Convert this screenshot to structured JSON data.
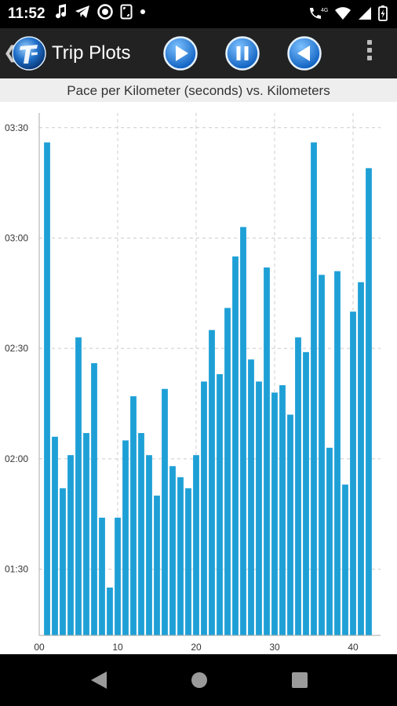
{
  "status_bar": {
    "time": "11:52",
    "left_icons": [
      "music-note-icon",
      "telegram-icon",
      "record-icon",
      "screenshot-icon",
      "dot-icon"
    ],
    "right_icons": [
      "call-4g-icon",
      "wifi-icon",
      "signal-icon",
      "battery-icon"
    ],
    "network_label": "4G"
  },
  "app_bar": {
    "title": "Trip Plots",
    "buttons": [
      "play-button",
      "pause-button",
      "rewind-button"
    ],
    "accent": "#1f7fd6"
  },
  "chart_data": {
    "type": "bar",
    "title": "Pace per Kilometer (seconds) vs. Kilometers",
    "xlabel": "",
    "ylabel": "",
    "color": "#1ea0d6",
    "x": [
      1,
      2,
      3,
      4,
      5,
      6,
      7,
      8,
      9,
      10,
      11,
      12,
      13,
      14,
      15,
      16,
      17,
      18,
      19,
      20,
      21,
      22,
      23,
      24,
      25,
      26,
      27,
      28,
      29,
      30,
      31,
      32,
      33,
      34,
      35,
      36,
      37,
      38,
      39,
      40,
      41,
      42
    ],
    "values": [
      206,
      126,
      112,
      121,
      153,
      127,
      146,
      104,
      85,
      104,
      125,
      137,
      127,
      121,
      110,
      139,
      118,
      115,
      112,
      121,
      141,
      155,
      143,
      161,
      175,
      183,
      147,
      141,
      172,
      138,
      140,
      132,
      153,
      149,
      206,
      170,
      123,
      171,
      113,
      160,
      168,
      199
    ],
    "xlim": [
      0,
      43.5
    ],
    "ylim": [
      72,
      214
    ],
    "xticks": [
      0,
      10,
      20,
      30,
      40
    ],
    "xtick_labels": [
      "00",
      "10",
      "20",
      "30",
      "40"
    ],
    "yticks": [
      90,
      120,
      150,
      180,
      210
    ],
    "ytick_labels": [
      "01:30",
      "02:00",
      "02:30",
      "03:00",
      "03:30"
    ],
    "grid": true
  }
}
